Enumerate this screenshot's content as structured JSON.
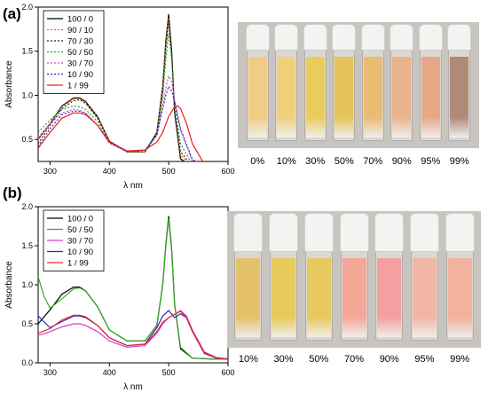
{
  "panel_a_label": "(a)",
  "panel_b_label": "(b)",
  "chart_data": [
    {
      "type": "line",
      "xlabel": "λ nm",
      "ylabel": "Absorbance",
      "xlim": [
        280,
        600
      ],
      "ylim": [
        0.25,
        2.0
      ],
      "xticks": [
        "300",
        "400",
        "500",
        "600"
      ],
      "yticks": [
        "0.5",
        "1.0",
        "1.5",
        "2.0"
      ],
      "legend_placement": "top-left",
      "series": [
        {
          "name": "100 / 0",
          "color": "#000000",
          "dash": "",
          "x": [
            280,
            300,
            320,
            340,
            350,
            360,
            380,
            400,
            430,
            460,
            480,
            490,
            495,
            500,
            505,
            510,
            520,
            540,
            570,
            600
          ],
          "y": [
            0.5,
            0.68,
            0.88,
            0.97,
            0.97,
            0.93,
            0.76,
            0.48,
            0.36,
            0.36,
            0.58,
            1.1,
            1.6,
            1.92,
            1.5,
            0.8,
            0.28,
            0.18,
            0.17,
            0.17
          ]
        },
        {
          "name": "90 / 10",
          "color": "#e8701e",
          "dash": "2,2",
          "x": [
            280,
            300,
            320,
            340,
            350,
            360,
            380,
            400,
            430,
            460,
            480,
            490,
            495,
            500,
            505,
            510,
            520,
            540,
            570,
            600
          ],
          "y": [
            0.5,
            0.68,
            0.87,
            0.96,
            0.96,
            0.92,
            0.75,
            0.48,
            0.36,
            0.36,
            0.57,
            1.07,
            1.55,
            1.88,
            1.47,
            0.82,
            0.32,
            0.18,
            0.17,
            0.17
          ]
        },
        {
          "name": "70 / 30",
          "color": "#222222",
          "dash": "2,2",
          "x": [
            280,
            300,
            320,
            340,
            350,
            360,
            380,
            400,
            430,
            460,
            480,
            490,
            495,
            500,
            505,
            510,
            520,
            540,
            570,
            600
          ],
          "y": [
            0.45,
            0.66,
            0.85,
            0.94,
            0.95,
            0.91,
            0.74,
            0.48,
            0.36,
            0.36,
            0.56,
            1.05,
            1.52,
            1.85,
            1.46,
            0.85,
            0.36,
            0.19,
            0.17,
            0.17
          ]
        },
        {
          "name": "50 / 50",
          "color": "#1fa82e",
          "dash": "2,2",
          "x": [
            280,
            300,
            320,
            340,
            350,
            360,
            380,
            400,
            430,
            460,
            480,
            490,
            495,
            500,
            505,
            510,
            520,
            540,
            570,
            600
          ],
          "y": [
            0.58,
            0.72,
            0.84,
            0.88,
            0.87,
            0.84,
            0.7,
            0.47,
            0.36,
            0.36,
            0.55,
            0.98,
            1.4,
            1.7,
            1.4,
            0.9,
            0.45,
            0.21,
            0.17,
            0.17
          ]
        },
        {
          "name": "30 / 70",
          "color": "#e040d8",
          "dash": "2,2",
          "x": [
            280,
            300,
            320,
            340,
            350,
            360,
            380,
            400,
            430,
            460,
            480,
            490,
            495,
            500,
            505,
            510,
            520,
            540,
            570,
            600
          ],
          "y": [
            0.52,
            0.68,
            0.8,
            0.84,
            0.83,
            0.8,
            0.66,
            0.46,
            0.36,
            0.38,
            0.55,
            0.88,
            1.08,
            1.22,
            1.15,
            0.95,
            0.6,
            0.25,
            0.18,
            0.17
          ]
        },
        {
          "name": "10 / 90",
          "color": "#2a2aa8",
          "dash": "2,2",
          "x": [
            280,
            300,
            320,
            340,
            350,
            360,
            380,
            400,
            430,
            460,
            480,
            490,
            495,
            500,
            505,
            510,
            520,
            540,
            570,
            600
          ],
          "y": [
            0.42,
            0.62,
            0.78,
            0.82,
            0.82,
            0.79,
            0.66,
            0.46,
            0.36,
            0.38,
            0.55,
            0.85,
            1.0,
            1.1,
            1.05,
            0.93,
            0.62,
            0.27,
            0.18,
            0.17
          ]
        },
        {
          "name": "1 / 99",
          "color": "#e82020",
          "dash": "",
          "x": [
            280,
            300,
            320,
            340,
            350,
            360,
            380,
            400,
            430,
            460,
            480,
            490,
            500,
            510,
            515,
            520,
            530,
            540,
            560,
            580,
            600
          ],
          "y": [
            0.4,
            0.58,
            0.74,
            0.8,
            0.8,
            0.78,
            0.66,
            0.47,
            0.37,
            0.38,
            0.47,
            0.58,
            0.76,
            0.87,
            0.88,
            0.85,
            0.68,
            0.45,
            0.22,
            0.17,
            0.17
          ]
        }
      ]
    },
    {
      "type": "line",
      "xlabel": "λ nm",
      "ylabel": "Absorbance",
      "xlim": [
        280,
        600
      ],
      "ylim": [
        0.0,
        2.0
      ],
      "xticks": [
        "300",
        "400",
        "500",
        "600"
      ],
      "yticks": [
        "0.0",
        "0.5",
        "1.0",
        "1.5",
        "2.0"
      ],
      "legend_placement": "top-left",
      "series": [
        {
          "name": "100 / 0",
          "color": "#000000",
          "dash": "",
          "x": [
            280,
            300,
            320,
            340,
            350,
            360,
            380,
            400,
            430,
            460,
            480,
            490,
            495,
            500,
            505,
            510,
            520,
            540,
            570,
            600
          ],
          "y": [
            0.5,
            0.68,
            0.88,
            0.97,
            0.97,
            0.92,
            0.72,
            0.42,
            0.28,
            0.28,
            0.48,
            1.0,
            1.5,
            1.88,
            1.45,
            0.75,
            0.18,
            0.06,
            0.05,
            0.05
          ]
        },
        {
          "name": "50 / 50",
          "color": "#3aa82a",
          "dash": "",
          "x": [
            280,
            290,
            300,
            320,
            340,
            350,
            360,
            380,
            400,
            430,
            460,
            480,
            490,
            495,
            500,
            505,
            510,
            520,
            540,
            570,
            600
          ],
          "y": [
            1.1,
            0.85,
            0.7,
            0.82,
            0.95,
            0.96,
            0.92,
            0.72,
            0.42,
            0.28,
            0.28,
            0.48,
            1.0,
            1.48,
            1.85,
            1.42,
            0.75,
            0.2,
            0.06,
            0.05,
            0.05
          ]
        },
        {
          "name": "30 / 70",
          "color": "#d040d0",
          "dash": "",
          "x": [
            280,
            300,
            320,
            340,
            350,
            360,
            380,
            400,
            430,
            460,
            480,
            490,
            500,
            510,
            520,
            530,
            540,
            560,
            580,
            600
          ],
          "y": [
            0.35,
            0.4,
            0.46,
            0.5,
            0.5,
            0.48,
            0.4,
            0.28,
            0.2,
            0.22,
            0.38,
            0.5,
            0.58,
            0.62,
            0.67,
            0.6,
            0.42,
            0.14,
            0.07,
            0.05
          ]
        },
        {
          "name": "10 / 90",
          "color": "#2a2ab0",
          "dash": "",
          "x": [
            280,
            300,
            320,
            340,
            350,
            360,
            380,
            400,
            430,
            460,
            480,
            490,
            500,
            510,
            520,
            530,
            540,
            560,
            580,
            600
          ],
          "y": [
            0.6,
            0.45,
            0.53,
            0.6,
            0.6,
            0.58,
            0.48,
            0.32,
            0.22,
            0.24,
            0.45,
            0.6,
            0.67,
            0.58,
            0.63,
            0.58,
            0.4,
            0.12,
            0.06,
            0.05
          ]
        },
        {
          "name": "1 / 99",
          "color": "#e02a2a",
          "dash": "",
          "x": [
            280,
            300,
            320,
            340,
            350,
            360,
            380,
            400,
            430,
            460,
            480,
            490,
            500,
            510,
            520,
            530,
            540,
            560,
            580,
            600
          ],
          "y": [
            0.38,
            0.44,
            0.55,
            0.61,
            0.61,
            0.59,
            0.48,
            0.32,
            0.22,
            0.24,
            0.4,
            0.52,
            0.58,
            0.62,
            0.66,
            0.58,
            0.4,
            0.13,
            0.06,
            0.05
          ]
        }
      ]
    }
  ],
  "photo_a": {
    "labels": [
      "0%",
      "10%",
      "30%",
      "50%",
      "70%",
      "90%",
      "95%",
      "99%"
    ],
    "liquid_colors": [
      "#f0cc84",
      "#efd17a",
      "#e9cc5c",
      "#e6c45a",
      "#eabb72",
      "#e9b48c",
      "#e7a888",
      "#b08a78"
    ],
    "background": "#c8c5c0"
  },
  "photo_b": {
    "labels": [
      "10%",
      "30%",
      "50%",
      "70%",
      "90%",
      "95%",
      "99%"
    ],
    "liquid_colors": [
      "#e4c16a",
      "#e6cb5a",
      "#e8c85c",
      "#f4a898",
      "#f4a0a0",
      "#f2b6a6",
      "#f2b29e"
    ],
    "background": "#c8c5c0"
  }
}
